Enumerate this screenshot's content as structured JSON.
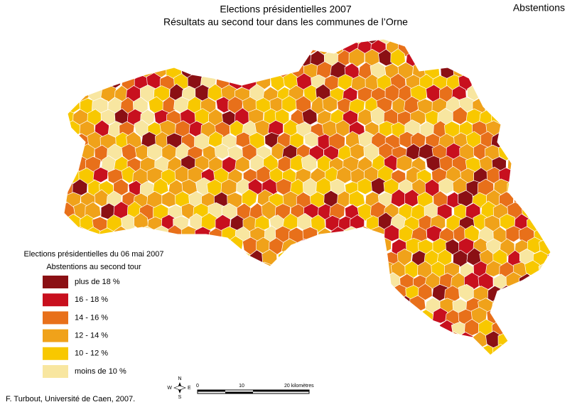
{
  "header": {
    "title": "Elections présidentielles 2007",
    "subtitle": "Résultats au second tour dans les communes de l’Orne",
    "corner_label": "Abstentions"
  },
  "legend": {
    "title": "Elections présidentielles du 06 mai 2007",
    "subtitle": "Abstentions au second tour",
    "items": [
      {
        "label": "plus de 18 %",
        "color": "#8b1014"
      },
      {
        "label": "16 - 18 %",
        "color": "#c8101e"
      },
      {
        "label": "14 - 16 %",
        "color": "#e8701a"
      },
      {
        "label": "12 - 14 %",
        "color": "#f0a21a"
      },
      {
        "label": "10 - 12 %",
        "color": "#f8c800"
      },
      {
        "label": "moins de 10 %",
        "color": "#f8e6a0"
      }
    ]
  },
  "compass": {
    "n": "N",
    "s": "S",
    "e": "E",
    "w": "W"
  },
  "scale": {
    "start": "0",
    "middle": "10",
    "end": "20 kilomètres"
  },
  "credit": "F. Turbout, Université de Caen, 2007."
}
